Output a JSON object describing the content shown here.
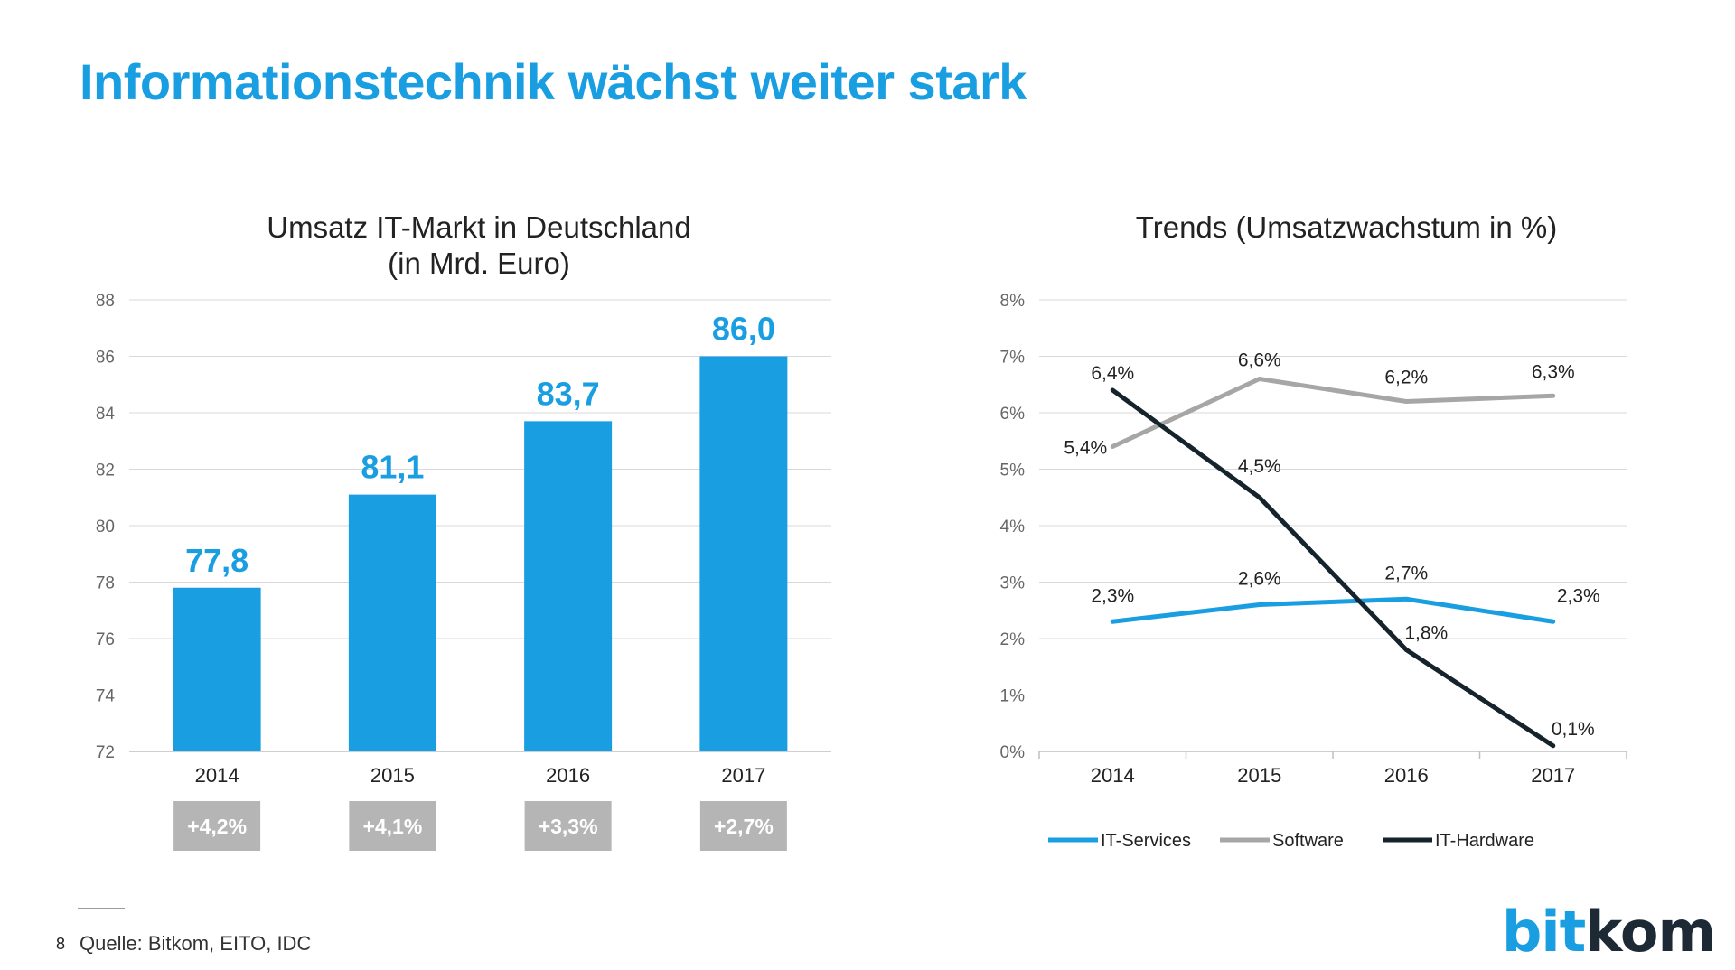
{
  "title": "Informationstechnik wächst weiter stark",
  "colors": {
    "accent": "#1a9ee2",
    "software": "#a6a6a6",
    "hardware": "#15232d",
    "growth_box": "#b5b5b5"
  },
  "footer": {
    "page_number": "8",
    "source": "Quelle: Bitkom, EITO, IDC"
  },
  "logo": {
    "part1": "bit",
    "part2": "kom"
  },
  "chart_data": [
    {
      "type": "bar",
      "title": "Umsatz IT-Markt in Deutschland",
      "subtitle": "(in Mrd. Euro)",
      "categories": [
        "2014",
        "2015",
        "2016",
        "2017"
      ],
      "values": [
        77.8,
        81.1,
        83.7,
        86.0
      ],
      "value_labels": [
        "77,8",
        "81,1",
        "83,7",
        "86,0"
      ],
      "growth_labels": [
        "+4,2%",
        "+4,1%",
        "+3,3%",
        "+2,7%"
      ],
      "ylim": [
        72,
        88
      ],
      "yticks": [
        72,
        74,
        76,
        78,
        80,
        82,
        84,
        86,
        88
      ],
      "grid": true
    },
    {
      "type": "line",
      "title": "Trends (Umsatzwachstum in %)",
      "categories": [
        "2014",
        "2015",
        "2016",
        "2017"
      ],
      "ylim": [
        0,
        8
      ],
      "yticks": [
        "0%",
        "1%",
        "2%",
        "3%",
        "4%",
        "5%",
        "6%",
        "7%",
        "8%"
      ],
      "grid": true,
      "legend_position": "bottom",
      "series": [
        {
          "name": "IT-Services",
          "color": "#1a9ee2",
          "values": [
            2.3,
            2.6,
            2.7,
            2.3
          ],
          "labels": [
            "2,3%",
            "2,6%",
            "2,7%",
            "2,3%"
          ]
        },
        {
          "name": "Software",
          "color": "#a6a6a6",
          "values": [
            5.4,
            6.6,
            6.2,
            6.3
          ],
          "labels": [
            "5,4%",
            "6,6%",
            "6,2%",
            "6,3%"
          ]
        },
        {
          "name": "IT-Hardware",
          "color": "#15232d",
          "values": [
            6.4,
            4.5,
            1.8,
            0.1
          ],
          "labels": [
            "6,4%",
            "4,5%",
            "1,8%",
            "0,1%"
          ]
        }
      ]
    }
  ]
}
